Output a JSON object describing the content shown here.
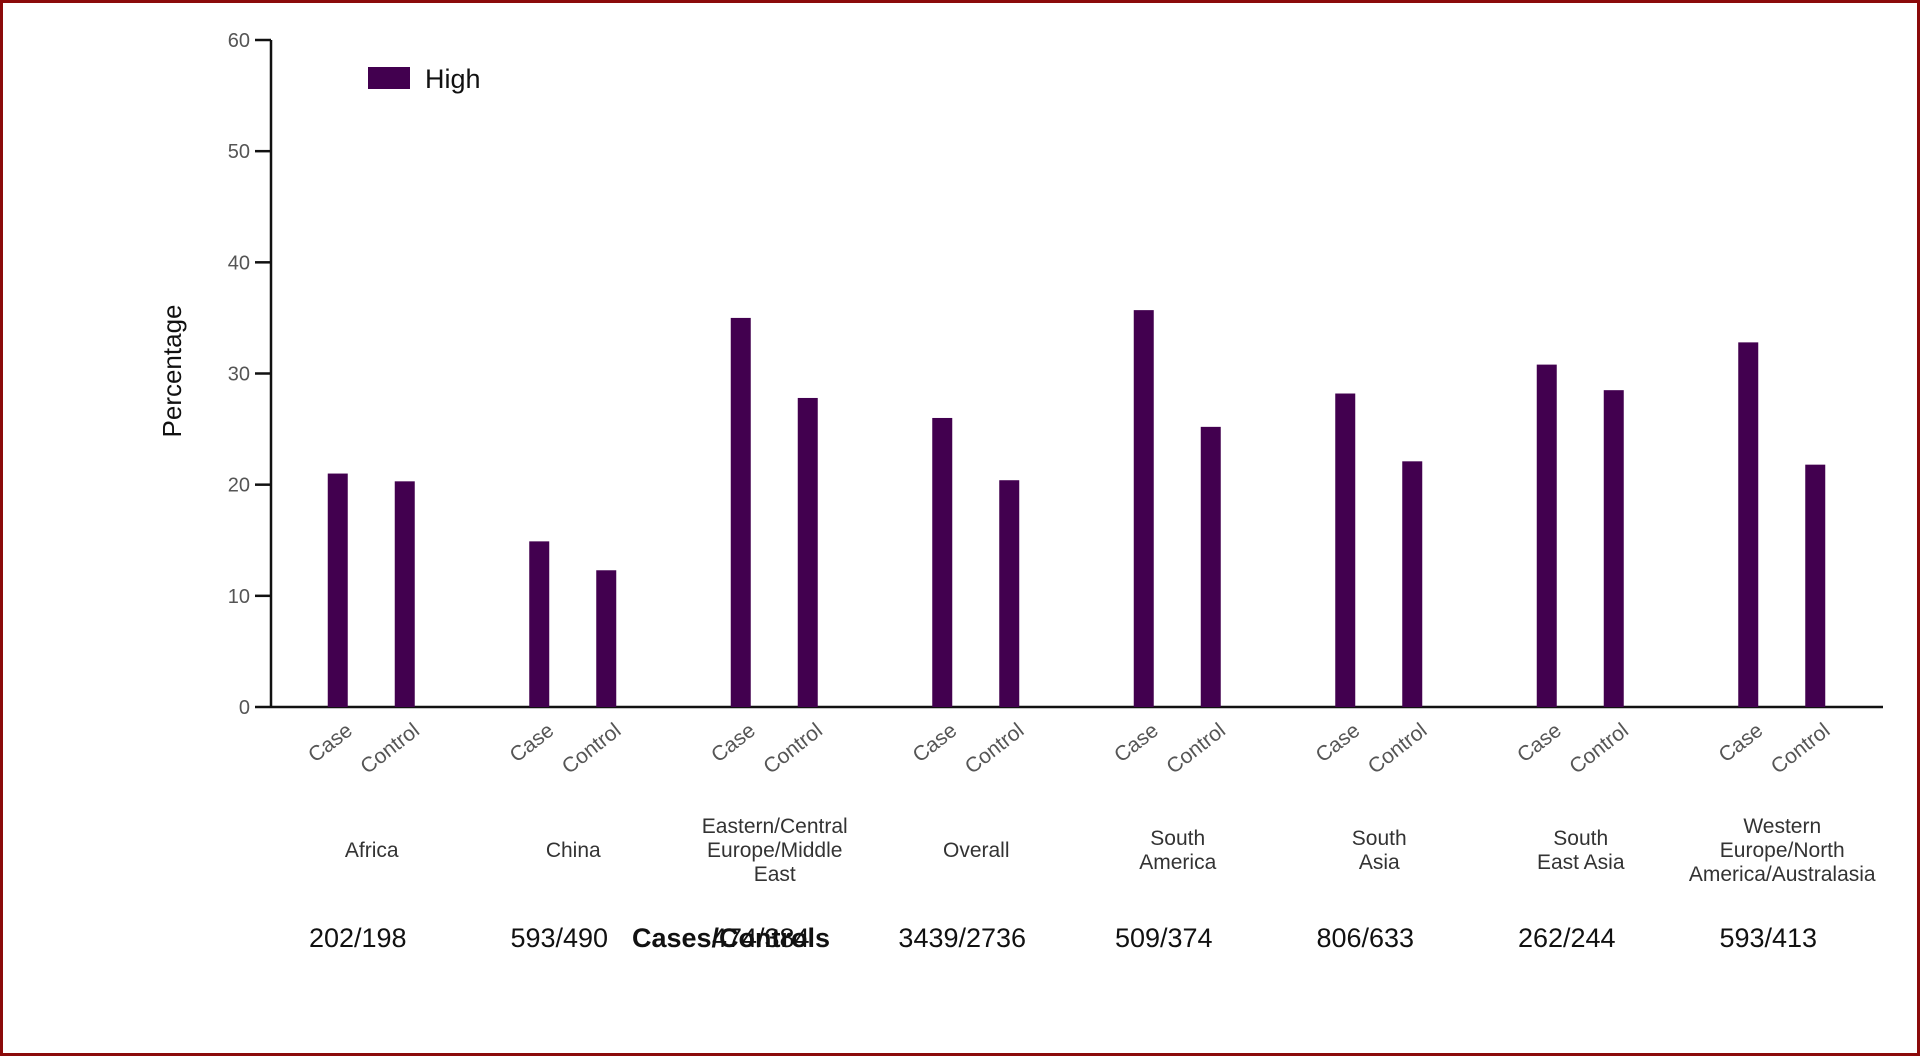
{
  "chart_data": {
    "type": "bar",
    "ylabel": "Percentage",
    "ylim": [
      0,
      60
    ],
    "yticks": [
      "0",
      "10",
      "20",
      "30",
      "40",
      "50",
      "60"
    ],
    "bar_color": "#42004f",
    "legend": {
      "label": "High",
      "placement": "top-left"
    },
    "bar_categories": [
      "Case",
      "Control"
    ],
    "counts_title": "Cases/Controls",
    "groups": [
      {
        "label": [
          "Africa"
        ],
        "counts": "202/198",
        "values": [
          21.0,
          20.3
        ]
      },
      {
        "label": [
          "China"
        ],
        "counts": "593/490",
        "values": [
          14.9,
          12.3
        ]
      },
      {
        "label": [
          "Eastern/Central",
          "Europe/Middle",
          "East"
        ],
        "counts": "474/384",
        "values": [
          35.0,
          27.8
        ]
      },
      {
        "label": [
          "Overall"
        ],
        "counts": "3439/2736",
        "values": [
          26.0,
          20.4
        ]
      },
      {
        "label": [
          "South",
          "America"
        ],
        "counts": "509/374",
        "values": [
          35.7,
          25.2
        ]
      },
      {
        "label": [
          "South",
          "Asia"
        ],
        "counts": "806/633",
        "values": [
          28.2,
          22.1
        ]
      },
      {
        "label": [
          "South",
          "East Asia"
        ],
        "counts": "262/244",
        "values": [
          30.8,
          28.5
        ]
      },
      {
        "label": [
          "Western",
          "Europe/North",
          "America/Australasia"
        ],
        "counts": "593/413",
        "values": [
          32.8,
          21.8
        ]
      }
    ]
  }
}
